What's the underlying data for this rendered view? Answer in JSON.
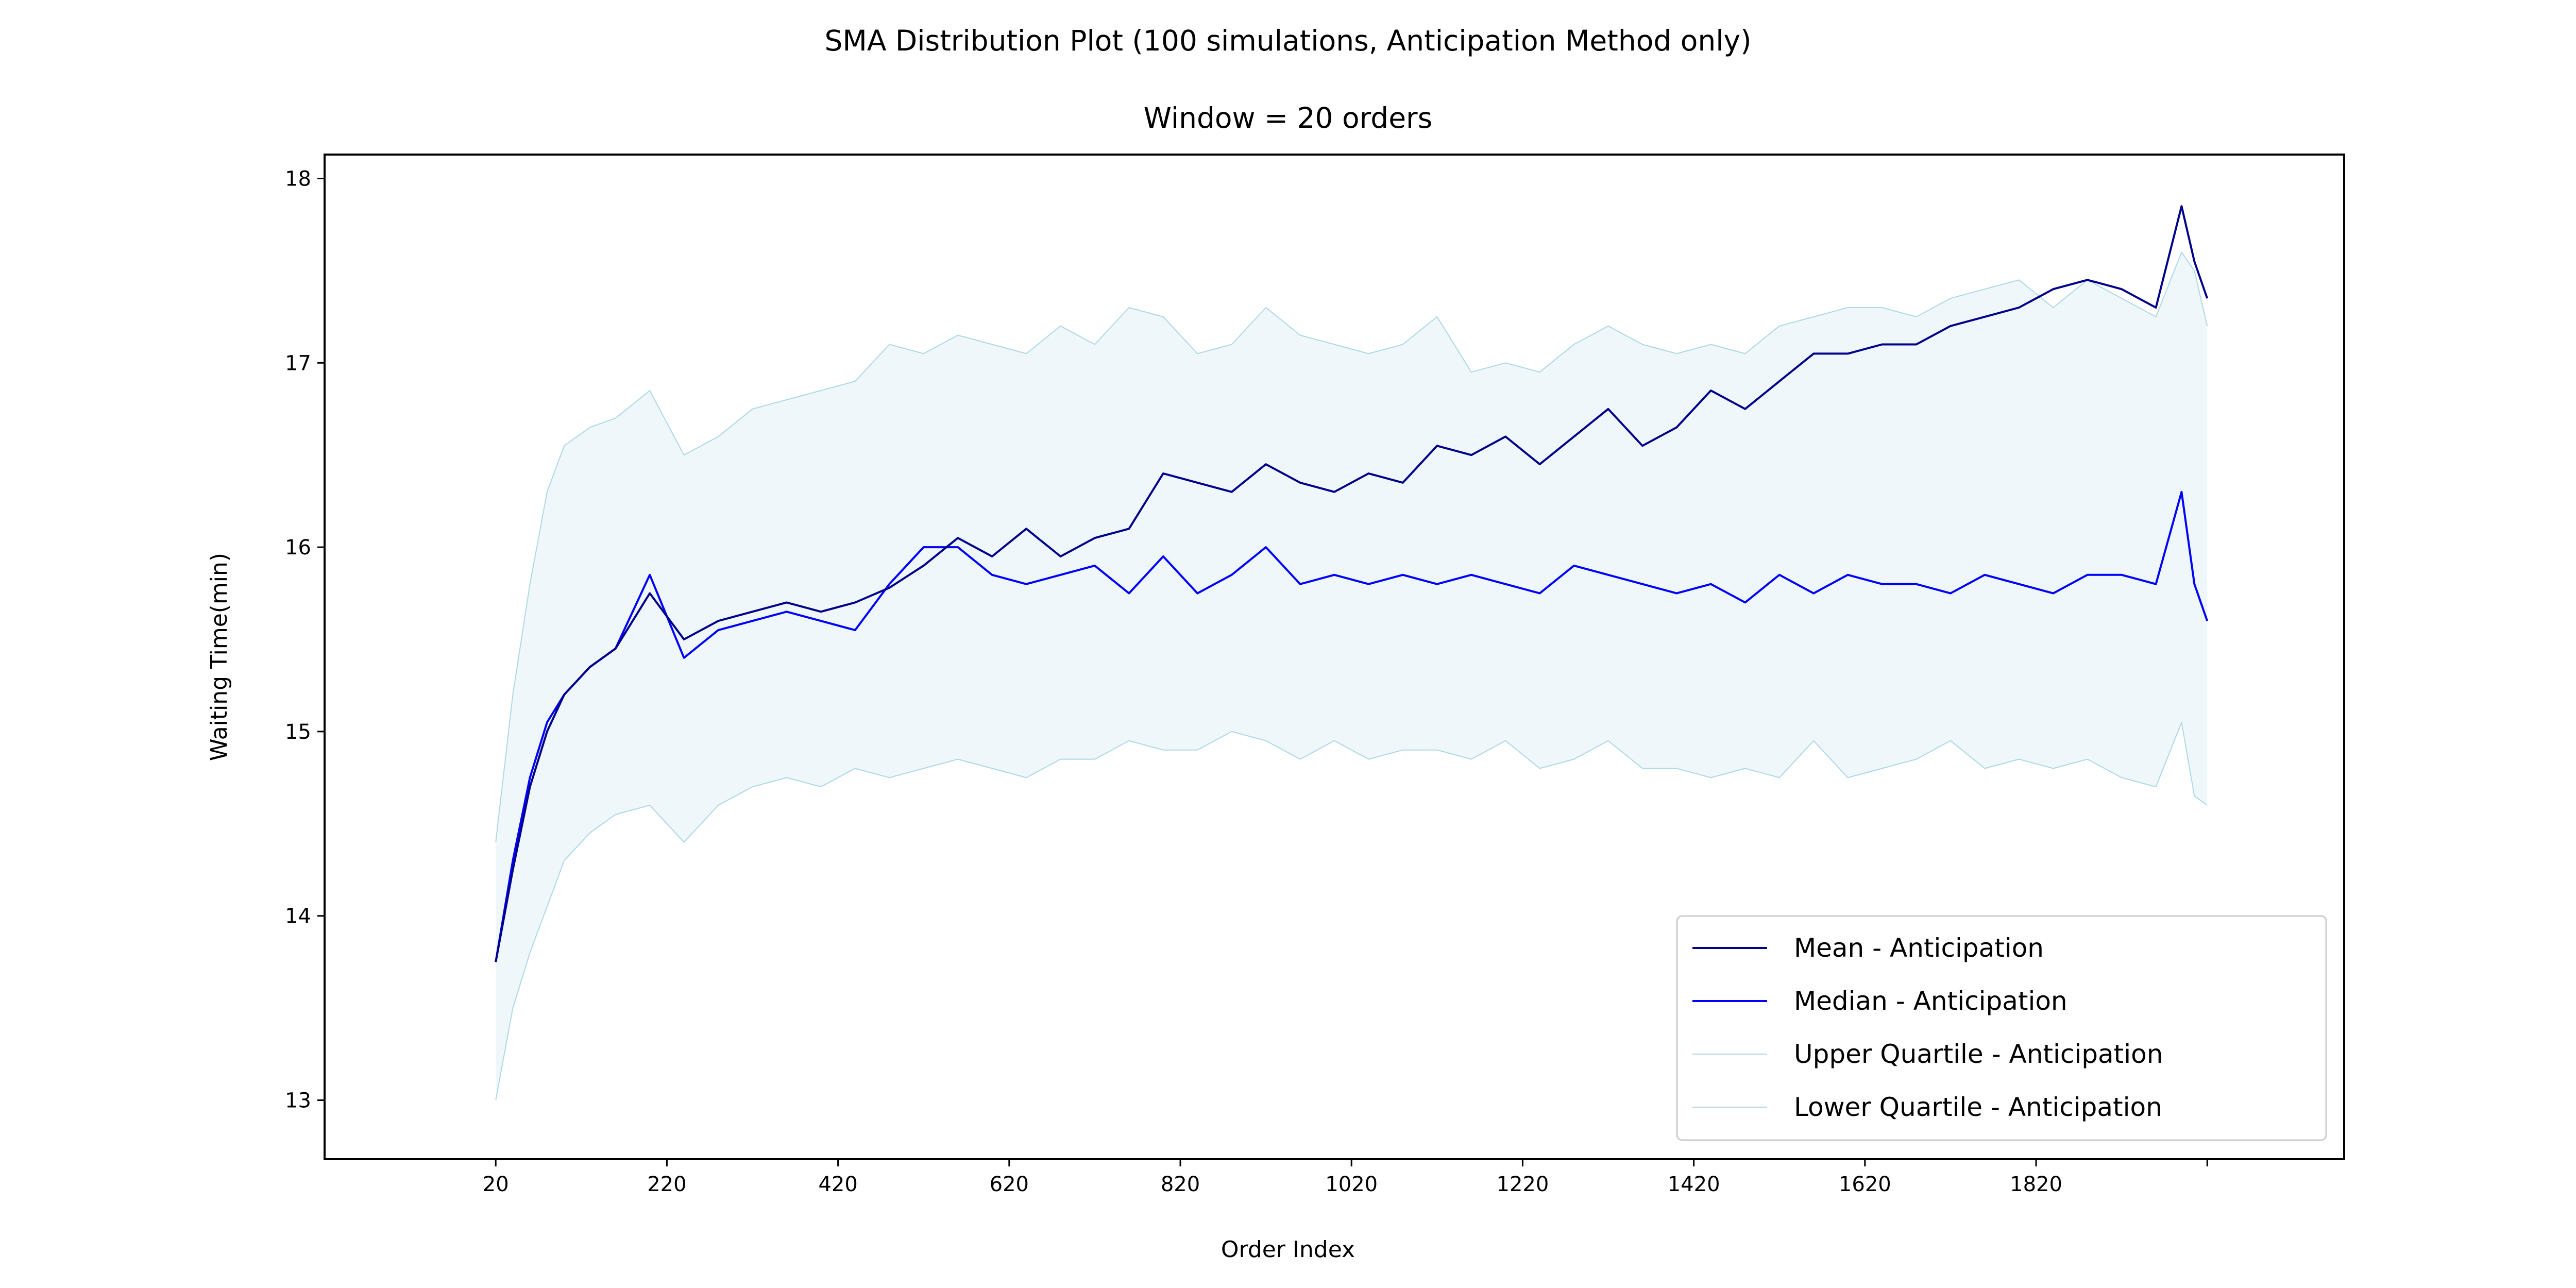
{
  "chart_data": {
    "type": "line",
    "suptitle": "SMA Distribution Plot (100 simulations, Anticipation Method only)",
    "title": "Window = 20 orders",
    "xlabel": "Order Index",
    "ylabel": "Waiting Time(min)",
    "xlim": [
      -180,
      2180
    ],
    "ylim": [
      12.68,
      18.13
    ],
    "xticks": [
      20,
      220,
      420,
      620,
      820,
      1020,
      1220,
      1420,
      1620,
      1820,
      2020
    ],
    "xtick_labels": [
      "20",
      "220",
      "420",
      "620",
      "820",
      "1020",
      "1220",
      "1420",
      "1620",
      "1820",
      ""
    ],
    "yticks": [
      13,
      14,
      15,
      16,
      17,
      18
    ],
    "ytick_labels": [
      "13",
      "14",
      "15",
      "16",
      "17",
      "18"
    ],
    "grid": false,
    "legend_position": "lower-right",
    "fill_between": {
      "lower": "Lower Quartile - Anticipation",
      "upper": "Upper Quartile - Anticipation",
      "color": "#add8e6",
      "alpha": 0.2
    },
    "x": [
      20,
      40,
      60,
      80,
      100,
      130,
      160,
      200,
      240,
      280,
      320,
      360,
      400,
      440,
      480,
      520,
      560,
      600,
      640,
      680,
      720,
      760,
      800,
      840,
      880,
      920,
      960,
      1000,
      1040,
      1080,
      1120,
      1160,
      1200,
      1240,
      1280,
      1320,
      1360,
      1400,
      1440,
      1480,
      1520,
      1560,
      1600,
      1640,
      1680,
      1720,
      1760,
      1800,
      1840,
      1880,
      1920,
      1960,
      1990,
      2005,
      2020
    ],
    "series": [
      {
        "name": "Mean - Anticipation",
        "color": "#00008b",
        "width": 4,
        "values": [
          13.75,
          14.25,
          14.7,
          15.0,
          15.2,
          15.35,
          15.45,
          15.75,
          15.5,
          15.6,
          15.65,
          15.7,
          15.65,
          15.7,
          15.78,
          15.9,
          16.05,
          15.95,
          16.1,
          15.95,
          16.05,
          16.1,
          16.4,
          16.35,
          16.3,
          16.45,
          16.35,
          16.3,
          16.4,
          16.35,
          16.55,
          16.5,
          16.6,
          16.45,
          16.6,
          16.75,
          16.55,
          16.65,
          16.85,
          16.75,
          16.9,
          17.05,
          17.05,
          17.1,
          17.1,
          17.2,
          17.25,
          17.3,
          17.4,
          17.45,
          17.4,
          17.3,
          17.85,
          17.55,
          17.35
        ]
      },
      {
        "name": "Median - Anticipation",
        "color": "#0000ff",
        "width": 4,
        "values": [
          13.75,
          14.3,
          14.75,
          15.05,
          15.2,
          15.35,
          15.45,
          15.85,
          15.4,
          15.55,
          15.6,
          15.65,
          15.6,
          15.55,
          15.8,
          16.0,
          16.0,
          15.85,
          15.8,
          15.85,
          15.9,
          15.75,
          15.95,
          15.75,
          15.85,
          16.0,
          15.8,
          15.85,
          15.8,
          15.85,
          15.8,
          15.85,
          15.8,
          15.75,
          15.9,
          15.85,
          15.8,
          15.75,
          15.8,
          15.7,
          15.85,
          15.75,
          15.85,
          15.8,
          15.8,
          15.75,
          15.85,
          15.8,
          15.75,
          15.85,
          15.85,
          15.8,
          16.3,
          15.8,
          15.6
        ]
      },
      {
        "name": "Upper Quartile - Anticipation",
        "color": "#add8e6",
        "width": 2,
        "values": [
          14.4,
          15.2,
          15.8,
          16.3,
          16.55,
          16.65,
          16.7,
          16.85,
          16.5,
          16.6,
          16.75,
          16.8,
          16.85,
          16.9,
          17.1,
          17.05,
          17.15,
          17.1,
          17.05,
          17.2,
          17.1,
          17.3,
          17.25,
          17.05,
          17.1,
          17.3,
          17.15,
          17.1,
          17.05,
          17.1,
          17.25,
          16.95,
          17.0,
          16.95,
          17.1,
          17.2,
          17.1,
          17.05,
          17.1,
          17.05,
          17.2,
          17.25,
          17.3,
          17.3,
          17.25,
          17.35,
          17.4,
          17.45,
          17.3,
          17.45,
          17.35,
          17.25,
          17.6,
          17.5,
          17.2
        ]
      },
      {
        "name": "Lower Quartile - Anticipation",
        "color": "#add8e6",
        "width": 2,
        "values": [
          13.0,
          13.5,
          13.8,
          14.05,
          14.3,
          14.45,
          14.55,
          14.6,
          14.4,
          14.6,
          14.7,
          14.75,
          14.7,
          14.8,
          14.75,
          14.8,
          14.85,
          14.8,
          14.75,
          14.85,
          14.85,
          14.95,
          14.9,
          14.9,
          15.0,
          14.95,
          14.85,
          14.95,
          14.85,
          14.9,
          14.9,
          14.85,
          14.95,
          14.8,
          14.85,
          14.95,
          14.8,
          14.8,
          14.75,
          14.8,
          14.75,
          14.95,
          14.75,
          14.8,
          14.85,
          14.95,
          14.8,
          14.85,
          14.8,
          14.85,
          14.75,
          14.7,
          15.05,
          14.65,
          14.6
        ]
      }
    ]
  }
}
